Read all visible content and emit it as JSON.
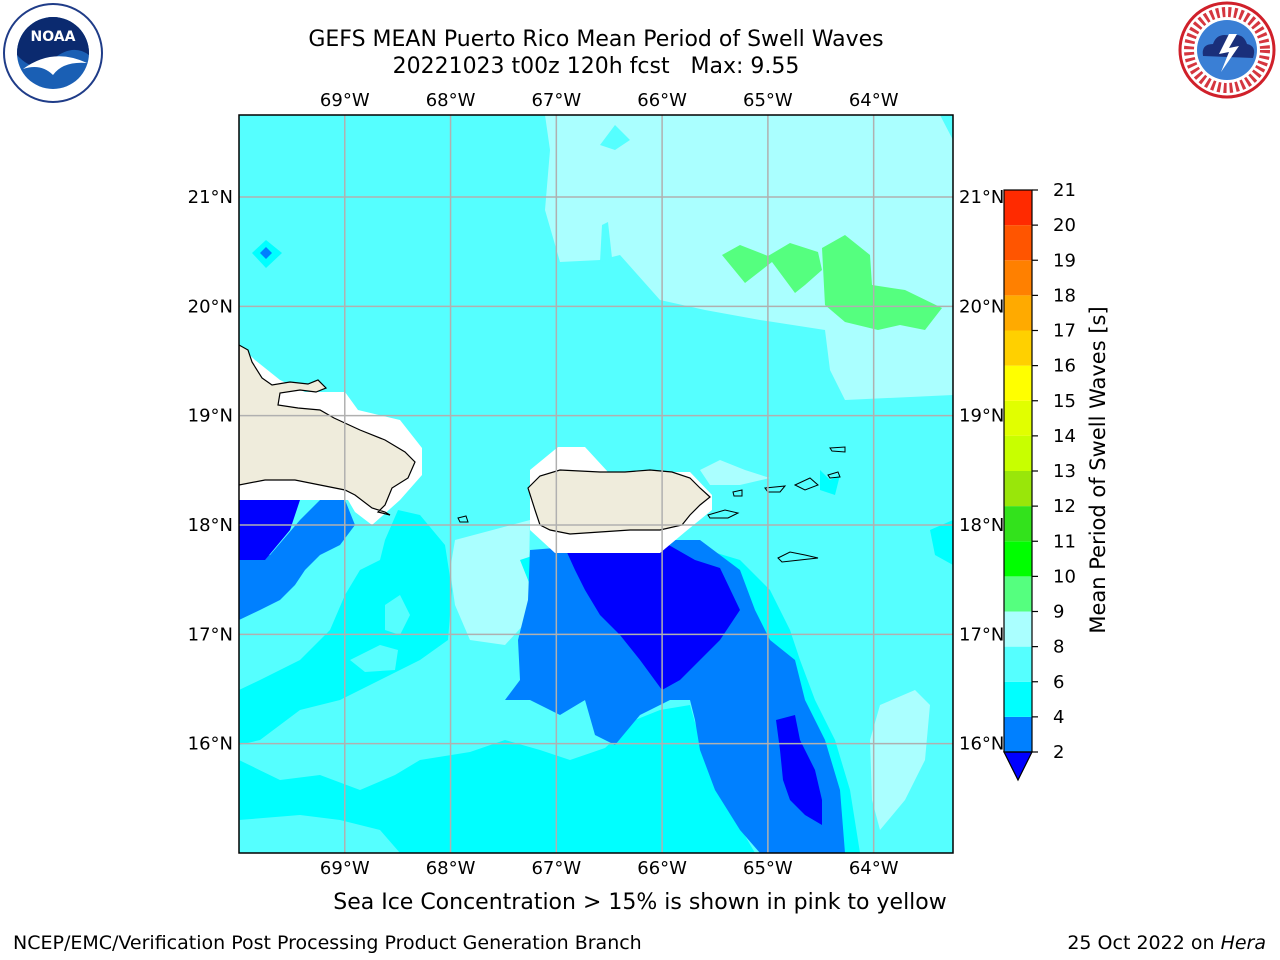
{
  "title": {
    "line1": "GEFS MEAN Puerto Rico Mean Period of Swell Waves",
    "line2": "20221023 t00z 120h fcst   Max: 9.55"
  },
  "map": {
    "lon_labels": [
      "69°W",
      "68°W",
      "67°W",
      "66°W",
      "65°W",
      "64°W"
    ],
    "lat_labels": [
      "21°N",
      "20°N",
      "19°N",
      "18°N",
      "17°N",
      "16°N"
    ],
    "lon_values": [
      -69,
      -68,
      -67,
      -66,
      -65,
      -64
    ],
    "lat_values": [
      21,
      20,
      19,
      18,
      17,
      16
    ],
    "extent": {
      "lon_min": -70,
      "lon_max": -63.25,
      "lat_min": 15,
      "lat_max": 21.75
    },
    "land_color": "#efecdc",
    "grid_color": "#b0b0b0"
  },
  "colorbar": {
    "label": "Mean Period of Swell Waves [s]",
    "tick_labels": [
      "2",
      "4",
      "6",
      "8",
      "9",
      "10",
      "11",
      "12",
      "13",
      "14",
      "15",
      "16",
      "17",
      "18",
      "19",
      "20",
      "21"
    ],
    "colors": [
      "#0000ff",
      "#0080ff",
      "#00ffff",
      "#55ffff",
      "#aaffff",
      "#55ff7f",
      "#00ff00",
      "#33e21c",
      "#99e60a",
      "#c8ff00",
      "#e1ff00",
      "#ffff00",
      "#ffd000",
      "#ffaa00",
      "#ff8000",
      "#ff5500",
      "#ff2a00",
      "#ff0000"
    ]
  },
  "caption": "Sea Ice Concentration > 15% is shown in pink to yellow",
  "footer": {
    "left": "NCEP/EMC/Verification Post Processing Product Generation Branch",
    "right_prefix": "25 Oct 2022 on ",
    "right_host": "Hera"
  },
  "logos": {
    "noaa_text": "NOAA",
    "nws_ring_text": "NATIONAL WEATHER SERVICE",
    "noaa_icon": "noaa-logo-icon",
    "nws_icon": "nws-logo-icon"
  }
}
